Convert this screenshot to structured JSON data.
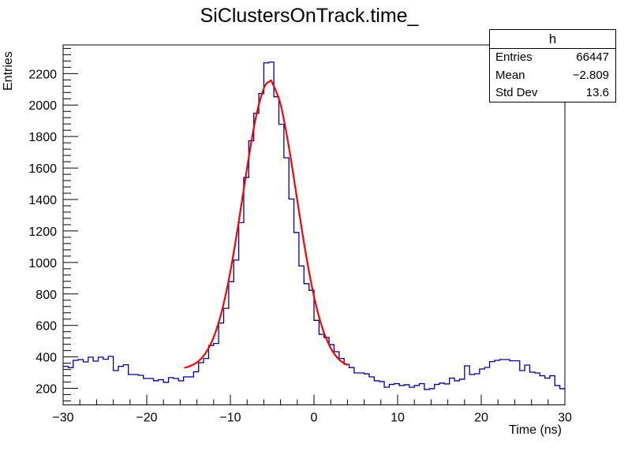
{
  "chart_data": {
    "type": "histogram",
    "title": "SiClustersOnTrack.time_",
    "xlabel": "Time (ns)",
    "ylabel": "Entries",
    "xlim": [
      -30,
      30
    ],
    "ylim": [
      95,
      2382
    ],
    "xticks": [
      -30,
      -20,
      -10,
      0,
      10,
      20,
      30
    ],
    "xtick_labels": [
      "−30",
      "−20",
      "−10",
      "0",
      "10",
      "20",
      "30"
    ],
    "yticks": [
      200,
      400,
      600,
      800,
      1000,
      1200,
      1400,
      1600,
      1800,
      2000,
      2200
    ],
    "ytick_labels": [
      "200",
      "400",
      "600",
      "800",
      "1000",
      "1200",
      "1400",
      "1600",
      "1800",
      "2000",
      "2200"
    ],
    "x_minor_step": 2,
    "y_minor_step": 40,
    "grid": false,
    "bin_edges_range": [
      -30,
      30
    ],
    "n_bins": 100,
    "bin_counts": [
      340,
      332,
      378,
      383,
      368,
      398,
      373,
      398,
      385,
      403,
      313,
      340,
      350,
      288,
      288,
      283,
      263,
      263,
      248,
      255,
      238,
      268,
      263,
      248,
      273,
      273,
      305,
      363,
      390,
      473,
      485,
      615,
      708,
      878,
      1015,
      1253,
      1540,
      1773,
      1948,
      2073,
      2268,
      2273,
      2053,
      1878,
      1665,
      1403,
      1190,
      978,
      865,
      823,
      632,
      543,
      523,
      478,
      433,
      390,
      353,
      332,
      298,
      298,
      292,
      273,
      248,
      243,
      207,
      225,
      230,
      218,
      223,
      207,
      218,
      230,
      193,
      198,
      225,
      233,
      228,
      265,
      248,
      258,
      343,
      288,
      293,
      323,
      333,
      370,
      378,
      383,
      383,
      375,
      375,
      313,
      348,
      303,
      298,
      280,
      265,
      280,
      218,
      198
    ],
    "fit": {
      "x": [
        -15.5,
        -15,
        -14,
        -13,
        -12,
        -11,
        -10,
        -9,
        -8,
        -7,
        -6,
        -5.3,
        -5,
        -4,
        -3,
        -2,
        -1,
        0,
        1,
        2,
        3,
        4
      ],
      "y": [
        331,
        338,
        365,
        421,
        524,
        695,
        942,
        1258,
        1601,
        1909,
        2106,
        2150,
        2142,
        2005,
        1733,
        1396,
        1062,
        784,
        583,
        456,
        383,
        347
      ]
    },
    "colors": {
      "histogram": "#000099",
      "fit": "#ff0000",
      "frame": "#000000"
    },
    "stats_box": {
      "name": "h",
      "rows": [
        {
          "label": "Entries",
          "value": "66447"
        },
        {
          "label": "Mean",
          "value": "−2.809"
        },
        {
          "label": "Std Dev",
          "value": "13.6"
        }
      ],
      "placement": "top-right"
    }
  }
}
